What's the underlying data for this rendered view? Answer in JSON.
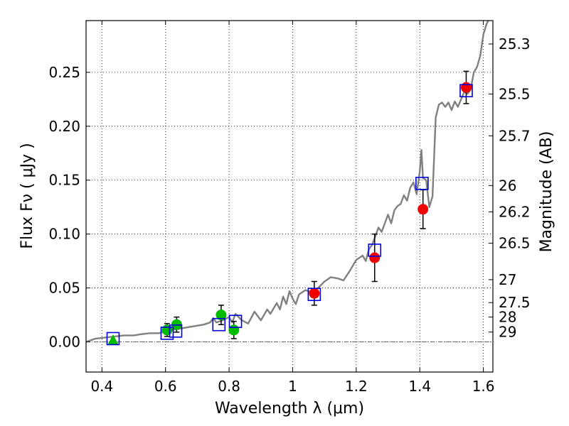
{
  "chart_data": {
    "type": "scatter",
    "xlabel": "Wavelength  λ (μm)",
    "ylabel": "Flux  Fν ( μJy )",
    "ylabel_right": "Magnitude (AB)",
    "xlim": [
      0.35,
      1.63
    ],
    "ylim": [
      -0.028,
      0.298
    ],
    "grid": true,
    "x_ticks": [
      0.4,
      0.6,
      0.8,
      1.0,
      1.2,
      1.4,
      1.6
    ],
    "x_tick_labels": [
      "0.4",
      "0.6",
      "0.8",
      "1",
      "1.2",
      "1.4",
      "1.6"
    ],
    "y_ticks": [
      0.0,
      0.05,
      0.1,
      0.15,
      0.2,
      0.25
    ],
    "y_tick_labels": [
      "0.00",
      "0.05",
      "0.10",
      "0.15",
      "0.20",
      "0.25"
    ],
    "right_ticks": [
      {
        "label": "25.3",
        "flux": 0.2763
      },
      {
        "label": "25.5",
        "flux": 0.2299
      },
      {
        "label": "25.7",
        "flux": 0.1911
      },
      {
        "label": "26",
        "flux": 0.145
      },
      {
        "label": "26.2",
        "flux": 0.1206
      },
      {
        "label": "26.5",
        "flux": 0.0915
      },
      {
        "label": "27",
        "flux": 0.0577
      },
      {
        "label": "27.5",
        "flux": 0.0364
      },
      {
        "label": "28",
        "flux": 0.023
      },
      {
        "label": "29",
        "flux": 0.0091
      }
    ],
    "model_sed": {
      "color": "#808080",
      "points": [
        [
          0.35,
          0.0
        ],
        [
          0.38,
          0.003
        ],
        [
          0.41,
          0.004
        ],
        [
          0.44,
          0.005
        ],
        [
          0.47,
          0.006
        ],
        [
          0.5,
          0.006
        ],
        [
          0.52,
          0.007
        ],
        [
          0.55,
          0.008
        ],
        [
          0.58,
          0.008
        ],
        [
          0.6,
          0.01
        ],
        [
          0.62,
          0.011
        ],
        [
          0.64,
          0.012
        ],
        [
          0.66,
          0.013
        ],
        [
          0.68,
          0.014
        ],
        [
          0.7,
          0.015
        ],
        [
          0.72,
          0.016
        ],
        [
          0.74,
          0.018
        ],
        [
          0.75,
          0.022
        ],
        [
          0.76,
          0.018
        ],
        [
          0.78,
          0.02
        ],
        [
          0.8,
          0.023
        ],
        [
          0.81,
          0.018
        ],
        [
          0.82,
          0.026
        ],
        [
          0.84,
          0.02
        ],
        [
          0.86,
          0.017
        ],
        [
          0.88,
          0.028
        ],
        [
          0.9,
          0.02
        ],
        [
          0.92,
          0.03
        ],
        [
          0.93,
          0.026
        ],
        [
          0.95,
          0.036
        ],
        [
          0.96,
          0.03
        ],
        [
          0.97,
          0.042
        ],
        [
          0.98,
          0.035
        ],
        [
          0.99,
          0.047
        ],
        [
          1.0,
          0.04
        ],
        [
          1.01,
          0.035
        ],
        [
          1.02,
          0.044
        ],
        [
          1.04,
          0.048
        ],
        [
          1.06,
          0.046
        ],
        [
          1.08,
          0.05
        ],
        [
          1.1,
          0.056
        ],
        [
          1.12,
          0.06
        ],
        [
          1.14,
          0.059
        ],
        [
          1.16,
          0.057
        ],
        [
          1.18,
          0.066
        ],
        [
          1.2,
          0.076
        ],
        [
          1.22,
          0.08
        ],
        [
          1.23,
          0.075
        ],
        [
          1.24,
          0.086
        ],
        [
          1.25,
          0.09
        ],
        [
          1.26,
          0.098
        ],
        [
          1.27,
          0.106
        ],
        [
          1.28,
          0.102
        ],
        [
          1.29,
          0.11
        ],
        [
          1.3,
          0.118
        ],
        [
          1.31,
          0.11
        ],
        [
          1.32,
          0.122
        ],
        [
          1.33,
          0.126
        ],
        [
          1.34,
          0.128
        ],
        [
          1.35,
          0.136
        ],
        [
          1.36,
          0.131
        ],
        [
          1.37,
          0.143
        ],
        [
          1.38,
          0.148
        ],
        [
          1.39,
          0.137
        ],
        [
          1.4,
          0.158
        ],
        [
          1.405,
          0.178
        ],
        [
          1.41,
          0.152
        ],
        [
          1.42,
          0.15
        ],
        [
          1.43,
          0.125
        ],
        [
          1.44,
          0.135
        ],
        [
          1.45,
          0.208
        ],
        [
          1.46,
          0.22
        ],
        [
          1.47,
          0.222
        ],
        [
          1.48,
          0.218
        ],
        [
          1.49,
          0.222
        ],
        [
          1.5,
          0.215
        ],
        [
          1.51,
          0.223
        ],
        [
          1.52,
          0.218
        ],
        [
          1.53,
          0.225
        ],
        [
          1.54,
          0.232
        ],
        [
          1.55,
          0.23
        ],
        [
          1.56,
          0.234
        ],
        [
          1.57,
          0.25
        ],
        [
          1.58,
          0.255
        ],
        [
          1.59,
          0.265
        ],
        [
          1.6,
          0.285
        ],
        [
          1.61,
          0.295
        ],
        [
          1.62,
          0.3
        ]
      ]
    },
    "series": [
      {
        "marker": "triangle",
        "color": "#00bb00",
        "points": [
          [
            0.435,
            0.001
          ]
        ]
      },
      {
        "marker": "circle",
        "color": "#00bb00",
        "points": [
          {
            "x": 0.605,
            "y": 0.011,
            "err": 0.006
          },
          {
            "x": 0.635,
            "y": 0.016,
            "err": 0.007
          },
          {
            "x": 0.775,
            "y": 0.025,
            "err": 0.009
          },
          {
            "x": 0.815,
            "y": 0.011,
            "err": 0.008
          }
        ]
      },
      {
        "marker": "circle",
        "color": "#ee0000",
        "points": [
          {
            "x": 1.068,
            "y": 0.045,
            "err": 0.011
          },
          {
            "x": 1.258,
            "y": 0.078,
            "err": 0.022
          },
          {
            "x": 1.41,
            "y": 0.123,
            "err": 0.018
          },
          {
            "x": 1.546,
            "y": 0.236,
            "err": 0.015
          }
        ]
      },
      {
        "marker": "square-open",
        "color": "#0000dd",
        "points": [
          [
            0.435,
            0.003
          ],
          [
            0.605,
            0.008
          ],
          [
            0.632,
            0.01
          ],
          [
            0.768,
            0.016
          ],
          [
            0.82,
            0.019
          ],
          [
            1.068,
            0.044
          ],
          [
            1.258,
            0.085
          ],
          [
            1.407,
            0.147
          ],
          [
            1.546,
            0.233
          ]
        ]
      }
    ],
    "error_bar_color": "#000000"
  }
}
